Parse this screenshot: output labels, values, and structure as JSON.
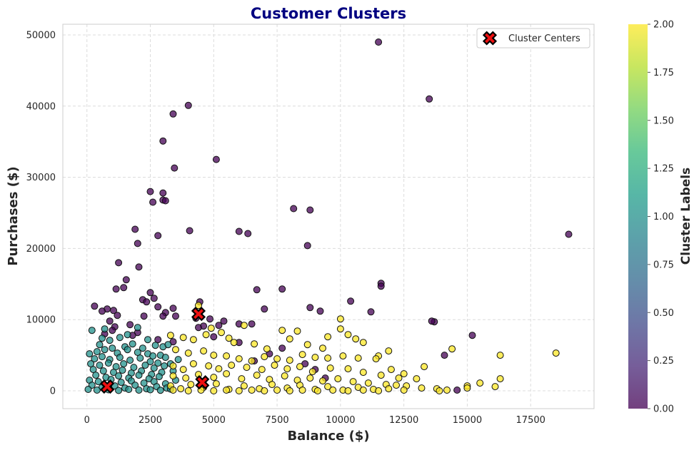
{
  "chart_data": {
    "type": "scatter",
    "title": "Customer Clusters",
    "xlabel": "Balance ($)",
    "ylabel": "Purchases ($)",
    "xlim": [
      -950,
      20000
    ],
    "ylim": [
      -2500,
      51500
    ],
    "xticks": [
      0,
      2500,
      5000,
      7500,
      10000,
      12500,
      15000,
      17500
    ],
    "yticks": [
      0,
      10000,
      20000,
      30000,
      40000,
      50000
    ],
    "grid": true,
    "legend": {
      "placement": "top-right",
      "entries": [
        "Cluster Centers"
      ]
    },
    "colorbar": {
      "label": "Cluster Labels",
      "range": [
        0,
        2
      ],
      "ticks": [
        "0.00",
        "0.25",
        "0.50",
        "0.75",
        "1.00",
        "1.25",
        "1.50",
        "1.75",
        "2.00"
      ],
      "colormap": [
        "#440154",
        "#482878",
        "#3e4989",
        "#31688e",
        "#26828e",
        "#1f9e89",
        "#35b779",
        "#6ece58",
        "#b5de2b",
        "#fde725"
      ]
    },
    "cluster_colors": [
      "#440154",
      "#21918c",
      "#fde725"
    ],
    "cluster_centers": [
      [
        4400,
        10800
      ],
      [
        4550,
        1200
      ],
      [
        800,
        600
      ]
    ],
    "series": [
      {
        "cluster": 0,
        "points": [
          [
            11500,
            49000
          ],
          [
            13500,
            41000
          ],
          [
            4000,
            40100
          ],
          [
            3400,
            38900
          ],
          [
            3000,
            35100
          ],
          [
            5100,
            32500
          ],
          [
            3450,
            31300
          ],
          [
            2500,
            28000
          ],
          [
            3000,
            27800
          ],
          [
            2600,
            26500
          ],
          [
            3000,
            26800
          ],
          [
            3100,
            26700
          ],
          [
            8150,
            25600
          ],
          [
            8800,
            25400
          ],
          [
            1900,
            22700
          ],
          [
            4050,
            22500
          ],
          [
            6000,
            22400
          ],
          [
            6350,
            22100
          ],
          [
            19000,
            22000
          ],
          [
            2800,
            21800
          ],
          [
            2000,
            20700
          ],
          [
            8700,
            20400
          ],
          [
            2050,
            17400
          ],
          [
            1250,
            18000
          ],
          [
            1550,
            15600
          ],
          [
            11600,
            15100
          ],
          [
            11600,
            14700
          ],
          [
            1150,
            14300
          ],
          [
            1450,
            14500
          ],
          [
            6700,
            14200
          ],
          [
            7700,
            14300
          ],
          [
            2500,
            13800
          ],
          [
            2650,
            13000
          ],
          [
            10400,
            12600
          ],
          [
            2200,
            12800
          ],
          [
            2350,
            12500
          ],
          [
            3400,
            11600
          ],
          [
            4450,
            12500
          ],
          [
            300,
            11900
          ],
          [
            800,
            11500
          ],
          [
            2800,
            11800
          ],
          [
            1050,
            11300
          ],
          [
            3100,
            11000
          ],
          [
            7000,
            11500
          ],
          [
            8800,
            11700
          ],
          [
            9200,
            11200
          ],
          [
            11200,
            11100
          ],
          [
            600,
            11200
          ],
          [
            1200,
            10600
          ],
          [
            2250,
            10500
          ],
          [
            3000,
            10500
          ],
          [
            3500,
            10500
          ],
          [
            4300,
            10200
          ],
          [
            4850,
            10100
          ],
          [
            5400,
            9800
          ],
          [
            5200,
            9200
          ],
          [
            6000,
            9400
          ],
          [
            6500,
            9400
          ],
          [
            13700,
            9700
          ],
          [
            13600,
            9800
          ],
          [
            900,
            9800
          ],
          [
            1100,
            9000
          ],
          [
            1700,
            9300
          ],
          [
            4600,
            9100
          ],
          [
            4400,
            8900
          ],
          [
            1000,
            8500
          ],
          [
            2000,
            8200
          ],
          [
            1800,
            7800
          ],
          [
            15200,
            7800
          ],
          [
            14100,
            5000
          ],
          [
            700,
            8000
          ],
          [
            5000,
            7600
          ],
          [
            7700,
            6000
          ],
          [
            8600,
            3800
          ],
          [
            9000,
            3000
          ],
          [
            2800,
            7200
          ],
          [
            3400,
            6900
          ],
          [
            6000,
            6800
          ],
          [
            14600,
            100
          ],
          [
            7200,
            5200
          ],
          [
            6600,
            4200
          ],
          [
            9400,
            1800
          ]
        ]
      },
      {
        "cluster": 1,
        "points": [
          [
            200,
            8500
          ],
          [
            700,
            8700
          ],
          [
            500,
            6500
          ],
          [
            1000,
            6000
          ],
          [
            900,
            7100
          ],
          [
            1500,
            6200
          ],
          [
            1800,
            6600
          ],
          [
            2200,
            6000
          ],
          [
            2700,
            6400
          ],
          [
            3000,
            6200
          ],
          [
            3200,
            6500
          ],
          [
            100,
            5200
          ],
          [
            400,
            5500
          ],
          [
            700,
            5800
          ],
          [
            1200,
            5300
          ],
          [
            1600,
            5800
          ],
          [
            2000,
            5400
          ],
          [
            2400,
            5200
          ],
          [
            2600,
            4900
          ],
          [
            2900,
            5000
          ],
          [
            3100,
            4700
          ],
          [
            300,
            4500
          ],
          [
            600,
            4800
          ],
          [
            900,
            4400
          ],
          [
            1300,
            4700
          ],
          [
            1700,
            4300
          ],
          [
            2100,
            4600
          ],
          [
            2500,
            4100
          ],
          [
            2800,
            3900
          ],
          [
            150,
            3800
          ],
          [
            500,
            3600
          ],
          [
            850,
            3900
          ],
          [
            1150,
            3400
          ],
          [
            1450,
            3800
          ],
          [
            1850,
            3300
          ],
          [
            2300,
            3600
          ],
          [
            2650,
            3200
          ],
          [
            3050,
            3500
          ],
          [
            250,
            3000
          ],
          [
            650,
            2800
          ],
          [
            1050,
            2600
          ],
          [
            1400,
            2900
          ],
          [
            1750,
            2500
          ],
          [
            2150,
            2800
          ],
          [
            2550,
            2300
          ],
          [
            2950,
            2600
          ],
          [
            350,
            2200
          ],
          [
            750,
            1900
          ],
          [
            1250,
            2100
          ],
          [
            1650,
            1800
          ],
          [
            2050,
            2200
          ],
          [
            2450,
            1700
          ],
          [
            2850,
            2000
          ],
          [
            100,
            1500
          ],
          [
            450,
            1300
          ],
          [
            950,
            1600
          ],
          [
            1350,
            1200
          ],
          [
            1750,
            1400
          ],
          [
            2250,
            1100
          ],
          [
            2650,
            1300
          ],
          [
            3100,
            1000
          ],
          [
            200,
            800
          ],
          [
            600,
            500
          ],
          [
            1100,
            700
          ],
          [
            1500,
            400
          ],
          [
            1900,
            800
          ],
          [
            2350,
            300
          ],
          [
            2750,
            600
          ],
          [
            3150,
            400
          ],
          [
            50,
            200
          ],
          [
            400,
            100
          ],
          [
            850,
            150
          ],
          [
            1250,
            50
          ],
          [
            1650,
            200
          ],
          [
            2050,
            100
          ],
          [
            2500,
            150
          ],
          [
            2900,
            80
          ],
          [
            3300,
            250
          ],
          [
            3500,
            1500
          ],
          [
            3400,
            2800
          ],
          [
            3300,
            3800
          ],
          [
            3600,
            4400
          ],
          [
            2400,
            7200
          ],
          [
            1300,
            7500
          ],
          [
            600,
            7400
          ],
          [
            1600,
            7900
          ],
          [
            2000,
            8900
          ]
        ]
      },
      {
        "cluster": 2,
        "points": [
          [
            4400,
            12000
          ],
          [
            3300,
            7800
          ],
          [
            3800,
            7500
          ],
          [
            4200,
            7200
          ],
          [
            4700,
            7900
          ],
          [
            4900,
            8800
          ],
          [
            5300,
            8200
          ],
          [
            5600,
            7400
          ],
          [
            6200,
            9200
          ],
          [
            5800,
            6800
          ],
          [
            6600,
            6600
          ],
          [
            7100,
            5900
          ],
          [
            7700,
            8500
          ],
          [
            8000,
            7300
          ],
          [
            8300,
            8400
          ],
          [
            8700,
            6500
          ],
          [
            9300,
            6000
          ],
          [
            9500,
            7600
          ],
          [
            10000,
            10100
          ],
          [
            10000,
            8700
          ],
          [
            10300,
            7900
          ],
          [
            10600,
            7300
          ],
          [
            10900,
            6800
          ],
          [
            11900,
            5600
          ],
          [
            11500,
            4900
          ],
          [
            13300,
            3400
          ],
          [
            14400,
            5900
          ],
          [
            16300,
            5000
          ],
          [
            18500,
            5300
          ],
          [
            3500,
            5800
          ],
          [
            4000,
            5300
          ],
          [
            4600,
            5600
          ],
          [
            5000,
            5000
          ],
          [
            5500,
            4900
          ],
          [
            6000,
            4500
          ],
          [
            6500,
            4200
          ],
          [
            7000,
            4800
          ],
          [
            7500,
            4500
          ],
          [
            8000,
            4300
          ],
          [
            8500,
            5100
          ],
          [
            9000,
            4700
          ],
          [
            9500,
            4600
          ],
          [
            10100,
            4900
          ],
          [
            10700,
            4600
          ],
          [
            11400,
            4500
          ],
          [
            12000,
            3000
          ],
          [
            12500,
            2400
          ],
          [
            13000,
            1700
          ],
          [
            3400,
            3500
          ],
          [
            3800,
            3000
          ],
          [
            4200,
            3800
          ],
          [
            4800,
            3500
          ],
          [
            5200,
            3100
          ],
          [
            5700,
            3600
          ],
          [
            6300,
            3300
          ],
          [
            6900,
            3000
          ],
          [
            7400,
            3600
          ],
          [
            7900,
            3100
          ],
          [
            8400,
            3400
          ],
          [
            8900,
            2700
          ],
          [
            9600,
            3200
          ],
          [
            10300,
            3100
          ],
          [
            10900,
            2600
          ],
          [
            11600,
            2200
          ],
          [
            12300,
            1800
          ],
          [
            3400,
            2100
          ],
          [
            3900,
            1800
          ],
          [
            4400,
            2300
          ],
          [
            5000,
            1900
          ],
          [
            5500,
            2400
          ],
          [
            6100,
            1700
          ],
          [
            6700,
            2200
          ],
          [
            7200,
            1600
          ],
          [
            7800,
            2100
          ],
          [
            8300,
            1500
          ],
          [
            8800,
            1800
          ],
          [
            9300,
            1400
          ],
          [
            9900,
            1700
          ],
          [
            10500,
            1300
          ],
          [
            11100,
            1100
          ],
          [
            11800,
            900
          ],
          [
            12600,
            700
          ],
          [
            13200,
            400
          ],
          [
            13800,
            300
          ],
          [
            14200,
            100
          ],
          [
            15000,
            700
          ],
          [
            15500,
            1100
          ],
          [
            16100,
            600
          ],
          [
            16300,
            1700
          ],
          [
            3300,
            700
          ],
          [
            3700,
            300
          ],
          [
            4100,
            900
          ],
          [
            4600,
            500
          ],
          [
            5100,
            1000
          ],
          [
            5600,
            200
          ],
          [
            6200,
            700
          ],
          [
            6800,
            300
          ],
          [
            7300,
            900
          ],
          [
            7900,
            400
          ],
          [
            8400,
            800
          ],
          [
            9000,
            200
          ],
          [
            9500,
            600
          ],
          [
            10100,
            100
          ],
          [
            10700,
            500
          ],
          [
            11300,
            200
          ],
          [
            11900,
            300
          ],
          [
            12500,
            100
          ],
          [
            13900,
            0
          ],
          [
            15000,
            400
          ],
          [
            12200,
            800
          ],
          [
            3400,
            100
          ],
          [
            4000,
            0
          ],
          [
            4500,
            100
          ],
          [
            5000,
            0
          ],
          [
            5500,
            100
          ],
          [
            6000,
            0
          ],
          [
            6500,
            100
          ],
          [
            7000,
            0
          ],
          [
            7500,
            100
          ],
          [
            8000,
            0
          ],
          [
            8500,
            100
          ],
          [
            9100,
            0
          ],
          [
            9700,
            100
          ],
          [
            10300,
            0
          ],
          [
            10900,
            100
          ],
          [
            11500,
            0
          ]
        ]
      }
    ]
  }
}
